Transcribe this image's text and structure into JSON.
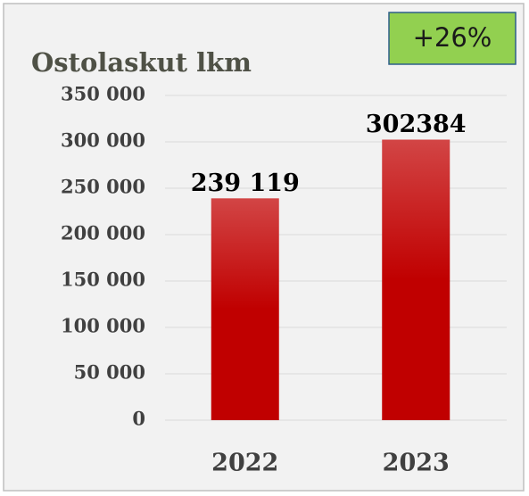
{
  "chart_data": {
    "type": "bar",
    "title": "Ostolaskut lkm",
    "annotation": "+26%",
    "categories": [
      "2022",
      "2023"
    ],
    "values": [
      239119,
      302384
    ],
    "value_labels": [
      "239 119",
      "302384"
    ],
    "color": "#c00000",
    "ylim": [
      0,
      350000
    ],
    "yticks": [
      0,
      {
        "value": 50000,
        "label": "50 000"
      },
      {
        "value": 100000,
        "label": "100 000"
      },
      {
        "value": 150000,
        "label": "150 000"
      },
      {
        "value": 200000,
        "label": "200 000"
      },
      {
        "value": 250000,
        "label": "250 000"
      },
      {
        "value": 300000,
        "label": "300 000"
      },
      {
        "value": 350000,
        "label": "350 000"
      }
    ],
    "grid": true
  }
}
